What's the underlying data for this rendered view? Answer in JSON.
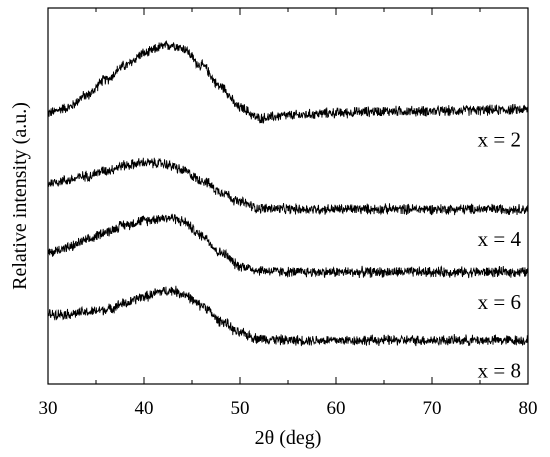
{
  "chart_data": {
    "type": "line",
    "title": "",
    "xlabel": "2θ (deg)",
    "ylabel": "Relative intensity (a.u.)",
    "xlim": [
      30,
      80
    ],
    "xticks": [
      "30",
      "40",
      "50",
      "60",
      "70",
      "80"
    ],
    "yticks_shown": false,
    "grid": false,
    "legend": "none",
    "y_units": "arbitrary (stacked profiles, relative intensity)",
    "line_color": "#000000",
    "noise_amplitude": 0.045,
    "x": [
      30,
      32,
      34,
      36,
      38,
      40,
      42,
      43,
      44,
      46,
      48,
      50,
      52,
      55,
      60,
      65,
      70,
      75,
      80
    ],
    "series": [
      {
        "name": "x = 2",
        "values": [
          3.1,
          3.16,
          3.3,
          3.48,
          3.64,
          3.78,
          3.86,
          3.88,
          3.84,
          3.64,
          3.4,
          3.16,
          3.04,
          3.07,
          3.1,
          3.12,
          3.12,
          3.13,
          3.14
        ]
      },
      {
        "name": "x = 4",
        "values": [
          2.3,
          2.33,
          2.38,
          2.44,
          2.5,
          2.53,
          2.52,
          2.49,
          2.44,
          2.33,
          2.2,
          2.08,
          2.01,
          2.0,
          2.0,
          2.0,
          2.0,
          2.0,
          2.0
        ]
      },
      {
        "name": "x = 6",
        "values": [
          1.5,
          1.56,
          1.64,
          1.74,
          1.82,
          1.87,
          1.9,
          1.9,
          1.86,
          1.7,
          1.5,
          1.35,
          1.3,
          1.28,
          1.28,
          1.28,
          1.28,
          1.28,
          1.28
        ]
      },
      {
        "name": "x = 8",
        "values": [
          0.8,
          0.8,
          0.82,
          0.85,
          0.92,
          1.0,
          1.06,
          1.07,
          1.03,
          0.9,
          0.72,
          0.58,
          0.52,
          0.5,
          0.5,
          0.5,
          0.5,
          0.5,
          0.5
        ]
      }
    ]
  }
}
